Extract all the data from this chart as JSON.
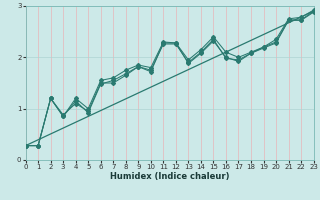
{
  "xlabel": "Humidex (Indice chaleur)",
  "xlim": [
    0,
    23
  ],
  "ylim": [
    0,
    3
  ],
  "yticks": [
    0,
    1,
    2,
    3
  ],
  "xticks": [
    0,
    1,
    2,
    3,
    4,
    5,
    6,
    7,
    8,
    9,
    10,
    11,
    12,
    13,
    14,
    15,
    16,
    17,
    18,
    19,
    20,
    21,
    22,
    23
  ],
  "bg_color": "#cce9e8",
  "grid_color_h": "#aed4d3",
  "grid_color_v": "#e8b4b8",
  "line_color": "#2a7a70",
  "line1_y": [
    0.28,
    0.28,
    1.2,
    0.85,
    1.15,
    0.92,
    1.48,
    1.55,
    1.68,
    1.82,
    1.72,
    2.28,
    2.28,
    1.88,
    2.08,
    2.32,
    2.0,
    1.92,
    2.08,
    2.18,
    2.28,
    2.72,
    2.72,
    2.88
  ],
  "line2_y": [
    0.28,
    0.28,
    1.2,
    0.85,
    1.2,
    1.0,
    1.55,
    1.6,
    1.75,
    1.85,
    1.8,
    2.3,
    2.28,
    1.95,
    2.15,
    2.4,
    2.1,
    2.0,
    2.1,
    2.2,
    2.35,
    2.75,
    2.78,
    2.92
  ],
  "line3_y": [
    0.28,
    0.28,
    1.2,
    0.88,
    1.1,
    0.95,
    1.5,
    1.5,
    1.65,
    1.82,
    1.75,
    2.26,
    2.26,
    1.9,
    2.1,
    2.35,
    1.98,
    1.95,
    2.08,
    2.2,
    2.3,
    2.73,
    2.73,
    2.9
  ],
  "regression_y0": 0.28,
  "regression_y1": 2.9
}
